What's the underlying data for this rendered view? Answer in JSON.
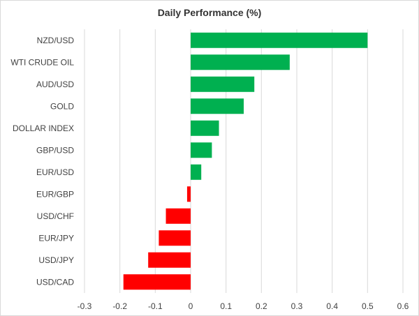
{
  "chart_data": {
    "type": "bar",
    "orientation": "horizontal",
    "title": "Daily Performance (%)",
    "xlabel": "",
    "ylabel": "",
    "categories": [
      "NZD/USD",
      "WTI CRUDE OIL",
      "AUD/USD",
      "GOLD",
      "DOLLAR INDEX",
      "GBP/USD",
      "EUR/USD",
      "EUR/GBP",
      "USD/CHF",
      "EUR/JPY",
      "USD/JPY",
      "USD/CAD"
    ],
    "values": [
      0.5,
      0.28,
      0.18,
      0.15,
      0.08,
      0.06,
      0.03,
      -0.01,
      -0.07,
      -0.09,
      -0.12,
      -0.19
    ],
    "xlim": [
      -0.3,
      0.6
    ],
    "xticks": [
      -0.3,
      -0.2,
      -0.1,
      0,
      0.1,
      0.2,
      0.3,
      0.4,
      0.5,
      0.6
    ],
    "xtick_labels": [
      "-0.3",
      "-0.2",
      "-0.1",
      "0",
      "0.1",
      "0.2",
      "0.3",
      "0.4",
      "0.5",
      "0.6"
    ],
    "grid": "vertical",
    "legend": "none",
    "colors": {
      "positive": "#00b050",
      "negative": "#ff0000",
      "grid": "#d9d9d9",
      "text": "#404040"
    }
  }
}
